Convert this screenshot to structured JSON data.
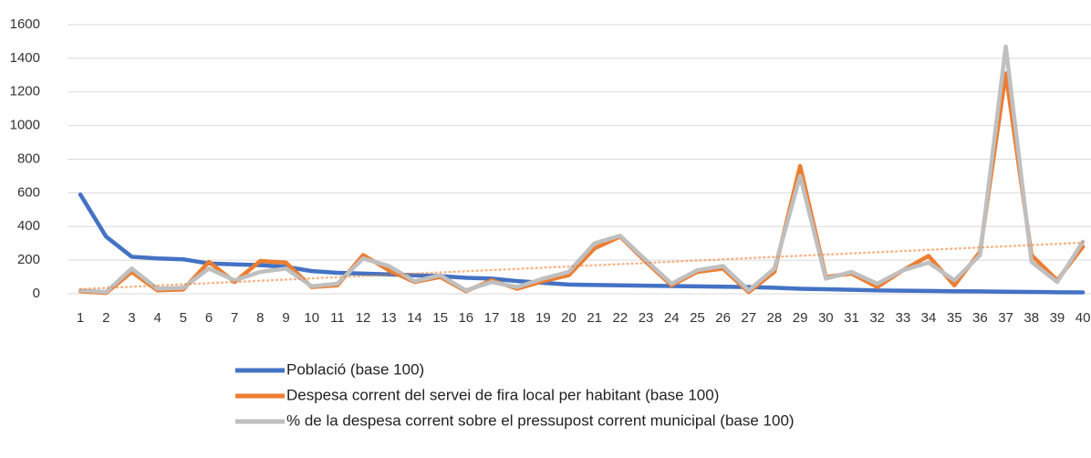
{
  "chart_data": {
    "type": "line",
    "categories": [
      "1",
      "2",
      "3",
      "4",
      "5",
      "6",
      "7",
      "8",
      "9",
      "10",
      "11",
      "12",
      "13",
      "14",
      "15",
      "16",
      "17",
      "18",
      "19",
      "20",
      "21",
      "22",
      "23",
      "24",
      "25",
      "26",
      "27",
      "28",
      "29",
      "30",
      "31",
      "32",
      "33",
      "34",
      "35",
      "36",
      "37",
      "38",
      "39",
      "40"
    ],
    "series": [
      {
        "name": "Població (base 100)",
        "color": "#4472c4",
        "values": [
          590,
          340,
          220,
          210,
          205,
          180,
          175,
          170,
          160,
          135,
          125,
          120,
          115,
          110,
          105,
          95,
          90,
          75,
          65,
          55,
          52,
          50,
          48,
          46,
          44,
          42,
          40,
          36,
          30,
          27,
          24,
          20,
          18,
          17,
          15,
          14,
          12,
          11,
          9,
          8
        ]
      },
      {
        "name": "Despesa corrent del servei de fira local per habitant (base 100)",
        "color": "#ed7d31",
        "trendline": "linear",
        "values": [
          15,
          5,
          130,
          20,
          25,
          190,
          70,
          195,
          185,
          40,
          50,
          230,
          140,
          70,
          100,
          15,
          80,
          30,
          75,
          110,
          270,
          340,
          190,
          50,
          130,
          150,
          10,
          130,
          760,
          100,
          120,
          40,
          140,
          225,
          50,
          250,
          1310,
          230,
          80,
          280
        ]
      },
      {
        "name": "% de la despesa corrent sobre el pressupost corrent municipal (base 100)",
        "color": "#bfbfbf",
        "values": [
          20,
          10,
          150,
          30,
          35,
          150,
          80,
          130,
          150,
          45,
          60,
          210,
          165,
          75,
          110,
          20,
          70,
          40,
          90,
          130,
          300,
          345,
          200,
          60,
          140,
          165,
          20,
          150,
          700,
          90,
          130,
          60,
          140,
          185,
          80,
          230,
          1470,
          190,
          70,
          310
        ]
      }
    ],
    "ylim": [
      0,
      1600
    ],
    "yticks": [
      0,
      200,
      400,
      600,
      800,
      1000,
      1200,
      1400,
      1600
    ],
    "grid": true,
    "legend": "bottom"
  }
}
